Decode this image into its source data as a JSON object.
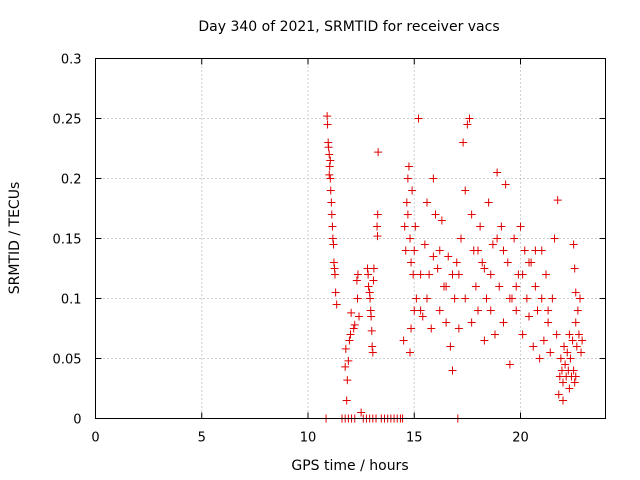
{
  "chart_data": {
    "type": "scatter",
    "title": "Day 340 of 2021, SRMTID for receiver vacs",
    "xlabel": "GPS time / hours",
    "ylabel": "SRMTID / TECUs",
    "xlim": [
      0,
      24
    ],
    "ylim": [
      0,
      0.3
    ],
    "xticks": [
      0,
      5,
      10,
      15,
      20
    ],
    "xtick_labels": [
      "0",
      "5",
      "10",
      "15",
      "20"
    ],
    "yticks": [
      0,
      0.05,
      0.1,
      0.15,
      0.2,
      0.25,
      0.3
    ],
    "ytick_labels": [
      "0",
      "0.05",
      "0.1",
      "0.15",
      "0.2",
      "0.25",
      "0.3"
    ],
    "grid": true,
    "marker_color": "#e00000",
    "series": [
      {
        "name": "SRMTID",
        "marker": "plus",
        "points": [
          [
            10.9,
            0.252
          ],
          [
            10.92,
            0.245
          ],
          [
            10.95,
            0.23
          ],
          [
            10.97,
            0.226
          ],
          [
            11.0,
            0.22
          ],
          [
            11.02,
            0.21
          ],
          [
            11.05,
            0.2
          ],
          [
            11.07,
            0.19
          ],
          [
            11.1,
            0.18
          ],
          [
            11.12,
            0.17
          ],
          [
            11.15,
            0.16
          ],
          [
            11.17,
            0.15
          ],
          [
            11.2,
            0.145
          ],
          [
            11.22,
            0.13
          ],
          [
            11.25,
            0.125
          ],
          [
            11.27,
            0.12
          ],
          [
            11.3,
            0.105
          ],
          [
            11.35,
            0.095
          ],
          [
            11.0,
            0.203
          ],
          [
            11.05,
            0.215
          ],
          [
            11.75,
            0.043
          ],
          [
            11.78,
            0.058
          ],
          [
            11.82,
            0.015
          ],
          [
            11.85,
            0.032
          ],
          [
            11.9,
            0.048
          ],
          [
            11.95,
            0.065
          ],
          [
            12.0,
            0.07
          ],
          [
            12.03,
            0.088
          ],
          [
            12.15,
            0.075
          ],
          [
            12.2,
            0.078
          ],
          [
            12.3,
            0.115
          ],
          [
            12.35,
            0.12
          ],
          [
            12.33,
            0.1
          ],
          [
            12.4,
            0.085
          ],
          [
            12.5,
            0.005
          ],
          [
            12.8,
            0.125
          ],
          [
            12.83,
            0.12
          ],
          [
            12.85,
            0.11
          ],
          [
            12.9,
            0.105
          ],
          [
            12.92,
            0.1
          ],
          [
            12.95,
            0.09
          ],
          [
            12.97,
            0.085
          ],
          [
            13.0,
            0.073
          ],
          [
            13.02,
            0.06
          ],
          [
            13.05,
            0.055
          ],
          [
            13.08,
            0.115
          ],
          [
            13.1,
            0.125
          ],
          [
            13.3,
            0.222
          ],
          [
            13.28,
            0.17
          ],
          [
            13.25,
            0.16
          ],
          [
            13.27,
            0.152
          ],
          [
            14.5,
            0.065
          ],
          [
            14.55,
            0.16
          ],
          [
            14.6,
            0.14
          ],
          [
            14.65,
            0.18
          ],
          [
            14.7,
            0.2
          ],
          [
            14.75,
            0.21
          ],
          [
            14.8,
            0.15
          ],
          [
            14.85,
            0.13
          ],
          [
            14.9,
            0.19
          ],
          [
            14.95,
            0.12
          ],
          [
            14.8,
            0.055
          ],
          [
            14.85,
            0.075
          ],
          [
            15.0,
            0.14
          ],
          [
            15.05,
            0.16
          ],
          [
            15.1,
            0.1
          ],
          [
            15.2,
            0.25
          ],
          [
            15.3,
            0.09
          ],
          [
            15.4,
            0.085
          ],
          [
            15.5,
            0.145
          ],
          [
            15.6,
            0.18
          ],
          [
            15.7,
            0.12
          ],
          [
            15.8,
            0.075
          ],
          [
            15.9,
            0.2
          ],
          [
            16.0,
            0.17
          ],
          [
            16.1,
            0.125
          ],
          [
            16.2,
            0.09
          ],
          [
            16.3,
            0.165
          ],
          [
            16.4,
            0.11
          ],
          [
            16.5,
            0.08
          ],
          [
            16.6,
            0.135
          ],
          [
            16.7,
            0.06
          ],
          [
            16.8,
            0.04
          ],
          [
            16.9,
            0.1
          ],
          [
            17.0,
            0.13
          ],
          [
            17.1,
            0.075
          ],
          [
            17.2,
            0.15
          ],
          [
            17.3,
            0.23
          ],
          [
            17.4,
            0.19
          ],
          [
            17.5,
            0.245
          ],
          [
            17.6,
            0.25
          ],
          [
            17.7,
            0.17
          ],
          [
            17.8,
            0.14
          ],
          [
            17.9,
            0.11
          ],
          [
            18.0,
            0.09
          ],
          [
            18.1,
            0.16
          ],
          [
            18.2,
            0.13
          ],
          [
            18.3,
            0.065
          ],
          [
            18.4,
            0.1
          ],
          [
            18.5,
            0.18
          ],
          [
            18.6,
            0.12
          ],
          [
            18.7,
            0.145
          ],
          [
            18.8,
            0.07
          ],
          [
            18.9,
            0.205
          ],
          [
            19.0,
            0.11
          ],
          [
            19.1,
            0.16
          ],
          [
            19.2,
            0.08
          ],
          [
            19.3,
            0.195
          ],
          [
            19.4,
            0.13
          ],
          [
            19.5,
            0.045
          ],
          [
            19.6,
            0.1
          ],
          [
            19.7,
            0.15
          ],
          [
            19.8,
            0.09
          ],
          [
            19.9,
            0.12
          ],
          [
            20.0,
            0.16
          ],
          [
            20.1,
            0.07
          ],
          [
            20.2,
            0.14
          ],
          [
            20.3,
            0.1
          ],
          [
            20.4,
            0.085
          ],
          [
            20.5,
            0.13
          ],
          [
            20.6,
            0.06
          ],
          [
            20.7,
            0.11
          ],
          [
            20.8,
            0.09
          ],
          [
            20.9,
            0.05
          ],
          [
            21.0,
            0.14
          ],
          [
            21.1,
            0.065
          ],
          [
            21.2,
            0.12
          ],
          [
            21.3,
            0.08
          ],
          [
            21.4,
            0.055
          ],
          [
            21.5,
            0.1
          ],
          [
            21.6,
            0.15
          ],
          [
            21.7,
            0.07
          ],
          [
            21.75,
            0.182
          ],
          [
            14.7,
            0.17
          ],
          [
            15.0,
            0.09
          ],
          [
            15.6,
            0.1
          ],
          [
            16.2,
            0.14
          ],
          [
            16.8,
            0.12
          ],
          [
            17.4,
            0.1
          ],
          [
            18.0,
            0.14
          ],
          [
            18.6,
            0.09
          ],
          [
            19.2,
            0.14
          ],
          [
            19.8,
            0.11
          ],
          [
            20.4,
            0.13
          ],
          [
            21.0,
            0.1
          ],
          [
            15.3,
            0.12
          ],
          [
            16.5,
            0.11
          ],
          [
            17.7,
            0.08
          ],
          [
            18.9,
            0.15
          ],
          [
            20.1,
            0.12
          ],
          [
            21.3,
            0.09
          ],
          [
            15.9,
            0.135
          ],
          [
            17.1,
            0.12
          ],
          [
            18.3,
            0.125
          ],
          [
            19.5,
            0.1
          ],
          [
            20.7,
            0.14
          ],
          [
            21.8,
            0.02
          ],
          [
            21.85,
            0.035
          ],
          [
            21.9,
            0.05
          ],
          [
            21.95,
            0.04
          ],
          [
            22.0,
            0.03
          ],
          [
            22.05,
            0.06
          ],
          [
            22.1,
            0.045
          ],
          [
            22.15,
            0.035
          ],
          [
            22.2,
            0.055
          ],
          [
            22.25,
            0.04
          ],
          [
            22.3,
            0.07
          ],
          [
            22.35,
            0.05
          ],
          [
            22.4,
            0.035
          ],
          [
            22.45,
            0.065
          ],
          [
            22.5,
            0.04
          ],
          [
            22.55,
            0.03
          ],
          [
            22.6,
            0.08
          ],
          [
            22.65,
            0.06
          ],
          [
            22.7,
            0.09
          ],
          [
            22.75,
            0.07
          ],
          [
            22.8,
            0.1
          ],
          [
            22.85,
            0.055
          ],
          [
            22.9,
            0.065
          ],
          [
            22.5,
            0.145
          ],
          [
            22.55,
            0.125
          ],
          [
            22.6,
            0.105
          ],
          [
            22.0,
            0.015
          ],
          [
            22.3,
            0.025
          ],
          [
            22.6,
            0.035
          ],
          [
            10.85,
            0.0
          ],
          [
            11.6,
            0.0
          ],
          [
            11.75,
            0.0
          ],
          [
            11.9,
            0.0
          ],
          [
            12.05,
            0.0
          ],
          [
            12.2,
            0.0
          ],
          [
            12.6,
            0.0
          ],
          [
            12.75,
            0.0
          ],
          [
            12.9,
            0.0
          ],
          [
            13.05,
            0.0
          ],
          [
            13.2,
            0.0
          ],
          [
            13.45,
            0.0
          ],
          [
            13.6,
            0.0
          ],
          [
            13.75,
            0.0
          ],
          [
            13.9,
            0.0
          ],
          [
            14.05,
            0.0
          ],
          [
            14.2,
            0.0
          ],
          [
            14.35,
            0.0
          ],
          [
            14.45,
            0.0
          ],
          [
            17.05,
            0.0
          ]
        ]
      }
    ]
  }
}
